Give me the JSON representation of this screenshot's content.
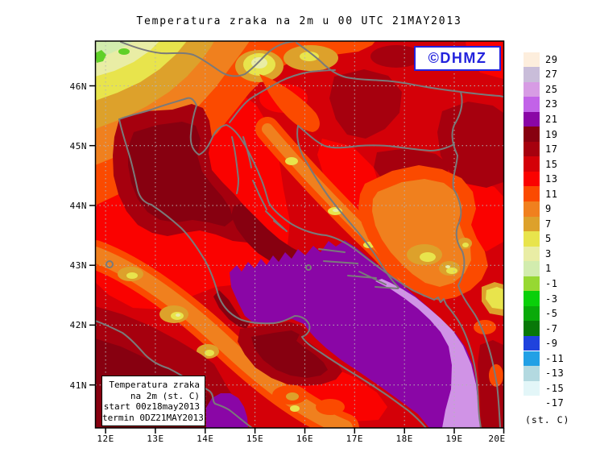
{
  "title": "Temperatura zraka na 2m u 00 UTC 21MAY2013",
  "logo": {
    "text": "©DHMZ",
    "color": "#2323dd"
  },
  "legend_box": {
    "lines": [
      "Temperatura zraka",
      "na 2m (st. C)",
      "start 00z18may2013",
      "termin 0DZ21MAY2013"
    ]
  },
  "axes": {
    "lat_labels": [
      "46N",
      "45N",
      "44N",
      "43N",
      "42N",
      "41N"
    ],
    "lon_labels": [
      "12E",
      "13E",
      "14E",
      "15E",
      "16E",
      "17E",
      "18E",
      "19E",
      "20E"
    ]
  },
  "colorbar": {
    "unit_label": "(st. C)",
    "levels": [
      {
        "value": "29",
        "color": "#fdeedd"
      },
      {
        "value": "27",
        "color": "#c9bdd9"
      },
      {
        "value": "25",
        "color": "#d79ce4"
      },
      {
        "value": "23",
        "color": "#c263e8"
      },
      {
        "value": "21",
        "color": "#8a06a6"
      },
      {
        "value": "19",
        "color": "#870010"
      },
      {
        "value": "17",
        "color": "#a6000e"
      },
      {
        "value": "15",
        "color": "#d40008"
      },
      {
        "value": "13",
        "color": "#fa0200"
      },
      {
        "value": "11",
        "color": "#fb4a00"
      },
      {
        "value": "9",
        "color": "#f0801e"
      },
      {
        "value": "7",
        "color": "#dda12b"
      },
      {
        "value": "5",
        "color": "#e8e44c"
      },
      {
        "value": "3",
        "color": "#e9eda5"
      },
      {
        "value": "1",
        "color": "#d2ecae"
      },
      {
        "value": "-1",
        "color": "#97d832"
      },
      {
        "value": "-3",
        "color": "#0ad00a"
      },
      {
        "value": "-5",
        "color": "#0aaa0a"
      },
      {
        "value": "-7",
        "color": "#087808"
      },
      {
        "value": "-9",
        "color": "#1f42dd"
      },
      {
        "value": "-11",
        "color": "#22a0e5"
      },
      {
        "value": "-13",
        "color": "#b3d9e0"
      },
      {
        "value": "-15",
        "color": "#e3f6f8"
      },
      {
        "value": "-17",
        "color": "#ffffff"
      }
    ]
  }
}
